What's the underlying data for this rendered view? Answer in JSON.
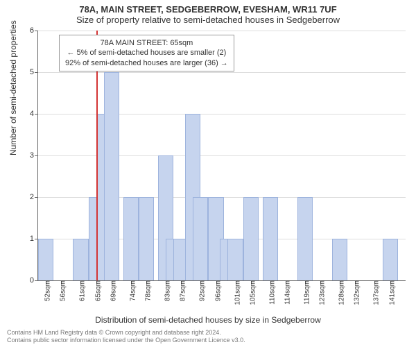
{
  "title_line1": "78A, MAIN STREET, SEDGEBERROW, EVESHAM, WR11 7UF",
  "title_line2": "Size of property relative to semi-detached houses in Sedgeberrow",
  "yaxis_label": "Number of semi-detached properties",
  "xaxis_label": "Distribution of semi-detached houses by size in Sedgeberrow",
  "footer_line1": "Contains HM Land Registry data © Crown copyright and database right 2024.",
  "footer_line2": "Contains public sector information licensed under the Open Government Licence v3.0.",
  "chart": {
    "type": "histogram",
    "ylim": [
      0,
      6
    ],
    "ytick_step": 1,
    "bar_color": "#c6d4ee",
    "bar_border_color": "#9db3dd",
    "grid_color": "#dddddd",
    "highlight_color": "#d33333",
    "highlight_x": 65,
    "background_color": "#ffffff",
    "x_min": 50,
    "x_max": 145,
    "bar_width_units": 4,
    "annotation": {
      "line1": "78A MAIN STREET: 65sqm",
      "line2": "← 5% of semi-detached houses are smaller (2)",
      "line3": "92% of semi-detached houses are larger (36) →"
    },
    "bars": [
      {
        "x": 52,
        "count": 1
      },
      {
        "x": 61,
        "count": 1
      },
      {
        "x": 65,
        "count": 2
      },
      {
        "x": 67,
        "count": 4
      },
      {
        "x": 69,
        "count": 5
      },
      {
        "x": 74,
        "count": 2
      },
      {
        "x": 78,
        "count": 2
      },
      {
        "x": 83,
        "count": 3
      },
      {
        "x": 85,
        "count": 1
      },
      {
        "x": 87,
        "count": 1
      },
      {
        "x": 90,
        "count": 4
      },
      {
        "x": 92,
        "count": 2
      },
      {
        "x": 96,
        "count": 2
      },
      {
        "x": 99,
        "count": 1
      },
      {
        "x": 101,
        "count": 1
      },
      {
        "x": 105,
        "count": 2
      },
      {
        "x": 110,
        "count": 2
      },
      {
        "x": 119,
        "count": 2
      },
      {
        "x": 128,
        "count": 1
      },
      {
        "x": 141,
        "count": 1
      }
    ],
    "xticks": [
      52,
      56,
      61,
      65,
      69,
      74,
      78,
      83,
      87,
      92,
      96,
      101,
      105,
      110,
      114,
      119,
      123,
      128,
      132,
      137,
      141
    ],
    "xtick_suffix": "sqm"
  }
}
